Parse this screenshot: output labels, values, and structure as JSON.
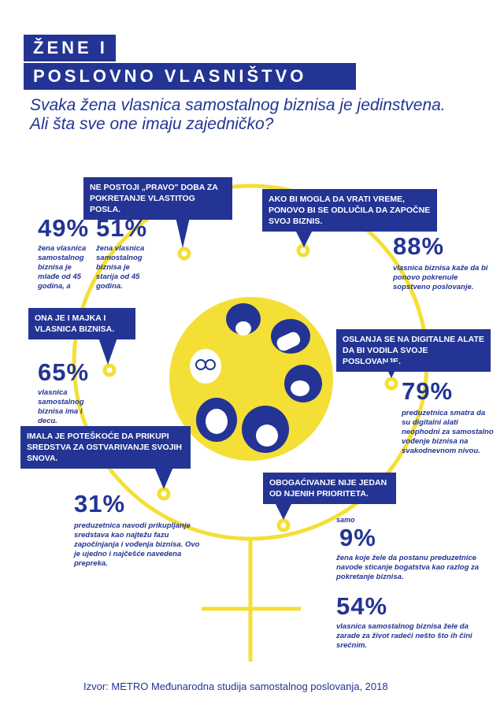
{
  "title": {
    "line1": "ŽENE I",
    "line2": "POSLOVNO VLASNIŠTVO"
  },
  "subtitle": {
    "line1": "Svaka žena vlasnica samostalnog biznisa je jedinstvena.",
    "line2": "Ali šta sve one imaju zajedničko?"
  },
  "colors": {
    "navy": "#233494",
    "yellow": "#f4df37",
    "white": "#ffffff"
  },
  "icons": [
    "venus-symbol-icon",
    "women-circle-icon"
  ],
  "callouts": {
    "age": "NE POSTOJI „PRAVO\" DOBA ZA POKRETANJE VLASTITOG POSLA.",
    "again": "AKO BI MOGLA DA VRATI VREME, PONOVO BI SE ODLUČILA DA ZAPOČNE SVOJ BIZNIS.",
    "mother": "ONA JE I MAJKA I VLASNICA BIZNISA.",
    "digital": "OSLANJA SE NA DIGITALNE ALATE DA BI VODILA SVOJE POSLOVANJE.",
    "funds": "IMALA JE POTEŠKOĆE DA PRIKUPI SREDSTVA ZA OSTVARIVANJE SVOJIH SNOVA.",
    "wealth": "OBOGAĆIVANJE NIJE JEDAN OD NJENIH PRIORITETA."
  },
  "stats": {
    "s49": {
      "value": "49%",
      "text": "žena vlasnica samostalnog biznisa je mlađe od 45 godina, a"
    },
    "s51": {
      "value": "51%",
      "text": "žena vlasnica samostalnog biznisa je starija od 45 godina."
    },
    "s88": {
      "value": "88%",
      "text": "vlasnica biznisa kaže da bi ponovo pokrenule sopstveno poslovanje."
    },
    "s65": {
      "value": "65%",
      "text": "vlasnica samostalnog biznisa ima i decu."
    },
    "s79": {
      "value": "79%",
      "text": "preduzetnica smatra da su digitalni alati neophodni za samostalno vođenje biznisa na svakodnevnom nivou."
    },
    "s31": {
      "value": "31%",
      "text": "preduzetnica navodi prikupljanje sredstava kao najtežu fazu započinjanja i vođenja biznisa. Ovo je ujedno i najčešće navedena prepreka."
    },
    "s9": {
      "prefix": "samo",
      "value": "9%",
      "text": "žena koje žele da postanu preduzetnice navode sticanje bogatstva kao razlog za pokretanje biznisa."
    },
    "s54": {
      "value": "54%",
      "text": "vlasnica samostalnog biznisa žele da zarade za život radeći nešto što ih čini srećnim."
    }
  },
  "source": "Izvor: METRO Međunarodna studija samostalnog poslovanja, 2018"
}
